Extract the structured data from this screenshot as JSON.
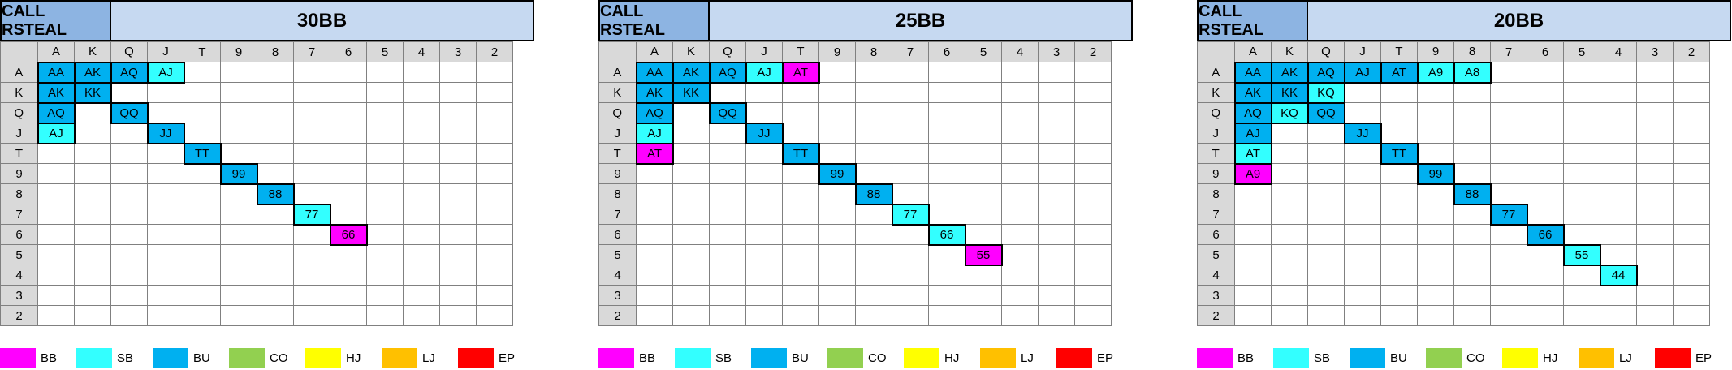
{
  "ranks": [
    "A",
    "K",
    "Q",
    "J",
    "T",
    "9",
    "8",
    "7",
    "6",
    "5",
    "4",
    "3",
    "2"
  ],
  "colors": {
    "BB": "#ff00ff",
    "SB": "#33ffff",
    "BU": "#00b0f0",
    "CO": "#92d050",
    "HJ": "#ffff00",
    "LJ": "#ffc000",
    "EP": "#ff0000"
  },
  "legend": [
    {
      "key": "BB",
      "label": "BB"
    },
    {
      "key": "SB",
      "label": "SB"
    },
    {
      "key": "BU",
      "label": "BU"
    },
    {
      "key": "CO",
      "label": "CO"
    },
    {
      "key": "HJ",
      "label": "HJ"
    },
    {
      "key": "LJ",
      "label": "LJ"
    },
    {
      "key": "EP",
      "label": "EP"
    }
  ],
  "panels": [
    {
      "title_left": "CALL RSTEAL",
      "title_right": "30BB",
      "cells": [
        {
          "r": 0,
          "c": 0,
          "text": "AA",
          "pos": "BU"
        },
        {
          "r": 0,
          "c": 1,
          "text": "AK",
          "pos": "BU"
        },
        {
          "r": 0,
          "c": 2,
          "text": "AQ",
          "pos": "BU"
        },
        {
          "r": 0,
          "c": 3,
          "text": "AJ",
          "pos": "SB"
        },
        {
          "r": 1,
          "c": 0,
          "text": "AK",
          "pos": "BU"
        },
        {
          "r": 1,
          "c": 1,
          "text": "KK",
          "pos": "BU"
        },
        {
          "r": 2,
          "c": 0,
          "text": "AQ",
          "pos": "BU"
        },
        {
          "r": 2,
          "c": 2,
          "text": "QQ",
          "pos": "BU"
        },
        {
          "r": 3,
          "c": 0,
          "text": "AJ",
          "pos": "SB"
        },
        {
          "r": 3,
          "c": 3,
          "text": "JJ",
          "pos": "BU"
        },
        {
          "r": 4,
          "c": 4,
          "text": "TT",
          "pos": "BU"
        },
        {
          "r": 5,
          "c": 5,
          "text": "99",
          "pos": "BU"
        },
        {
          "r": 6,
          "c": 6,
          "text": "88",
          "pos": "BU"
        },
        {
          "r": 7,
          "c": 7,
          "text": "77",
          "pos": "SB"
        },
        {
          "r": 8,
          "c": 8,
          "text": "66",
          "pos": "BB"
        }
      ]
    },
    {
      "title_left": "CALL RSTEAL",
      "title_right": "25BB",
      "cells": [
        {
          "r": 0,
          "c": 0,
          "text": "AA",
          "pos": "BU"
        },
        {
          "r": 0,
          "c": 1,
          "text": "AK",
          "pos": "BU"
        },
        {
          "r": 0,
          "c": 2,
          "text": "AQ",
          "pos": "BU"
        },
        {
          "r": 0,
          "c": 3,
          "text": "AJ",
          "pos": "SB"
        },
        {
          "r": 0,
          "c": 4,
          "text": "AT",
          "pos": "BB"
        },
        {
          "r": 1,
          "c": 0,
          "text": "AK",
          "pos": "BU"
        },
        {
          "r": 1,
          "c": 1,
          "text": "KK",
          "pos": "BU"
        },
        {
          "r": 2,
          "c": 0,
          "text": "AQ",
          "pos": "BU"
        },
        {
          "r": 2,
          "c": 2,
          "text": "QQ",
          "pos": "BU"
        },
        {
          "r": 3,
          "c": 0,
          "text": "AJ",
          "pos": "SB"
        },
        {
          "r": 3,
          "c": 3,
          "text": "JJ",
          "pos": "BU"
        },
        {
          "r": 4,
          "c": 0,
          "text": "AT",
          "pos": "BB"
        },
        {
          "r": 4,
          "c": 4,
          "text": "TT",
          "pos": "BU"
        },
        {
          "r": 5,
          "c": 5,
          "text": "99",
          "pos": "BU"
        },
        {
          "r": 6,
          "c": 6,
          "text": "88",
          "pos": "BU"
        },
        {
          "r": 7,
          "c": 7,
          "text": "77",
          "pos": "SB"
        },
        {
          "r": 8,
          "c": 8,
          "text": "66",
          "pos": "SB"
        },
        {
          "r": 9,
          "c": 9,
          "text": "55",
          "pos": "BB"
        }
      ]
    },
    {
      "title_left": "CALL RSTEAL",
      "title_right": "20BB",
      "cells": [
        {
          "r": 0,
          "c": 0,
          "text": "AA",
          "pos": "BU"
        },
        {
          "r": 0,
          "c": 1,
          "text": "AK",
          "pos": "BU"
        },
        {
          "r": 0,
          "c": 2,
          "text": "AQ",
          "pos": "BU"
        },
        {
          "r": 0,
          "c": 3,
          "text": "AJ",
          "pos": "BU"
        },
        {
          "r": 0,
          "c": 4,
          "text": "AT",
          "pos": "BU"
        },
        {
          "r": 0,
          "c": 5,
          "text": "A9",
          "pos": "SB"
        },
        {
          "r": 0,
          "c": 6,
          "text": "A8",
          "pos": "SB"
        },
        {
          "r": 1,
          "c": 0,
          "text": "AK",
          "pos": "BU"
        },
        {
          "r": 1,
          "c": 1,
          "text": "KK",
          "pos": "BU"
        },
        {
          "r": 1,
          "c": 2,
          "text": "KQ",
          "pos": "SB"
        },
        {
          "r": 2,
          "c": 0,
          "text": "AQ",
          "pos": "BU"
        },
        {
          "r": 2,
          "c": 1,
          "text": "KQ",
          "pos": "SB"
        },
        {
          "r": 2,
          "c": 2,
          "text": "QQ",
          "pos": "BU"
        },
        {
          "r": 3,
          "c": 0,
          "text": "AJ",
          "pos": "BU"
        },
        {
          "r": 3,
          "c": 3,
          "text": "JJ",
          "pos": "BU"
        },
        {
          "r": 4,
          "c": 0,
          "text": "AT",
          "pos": "SB"
        },
        {
          "r": 4,
          "c": 4,
          "text": "TT",
          "pos": "BU"
        },
        {
          "r": 5,
          "c": 0,
          "text": "A9",
          "pos": "BB"
        },
        {
          "r": 5,
          "c": 5,
          "text": "99",
          "pos": "BU"
        },
        {
          "r": 6,
          "c": 6,
          "text": "88",
          "pos": "BU"
        },
        {
          "r": 7,
          "c": 7,
          "text": "77",
          "pos": "BU"
        },
        {
          "r": 8,
          "c": 8,
          "text": "66",
          "pos": "BU"
        },
        {
          "r": 9,
          "c": 9,
          "text": "55",
          "pos": "SB"
        },
        {
          "r": 10,
          "c": 10,
          "text": "44",
          "pos": "SB"
        }
      ]
    }
  ]
}
